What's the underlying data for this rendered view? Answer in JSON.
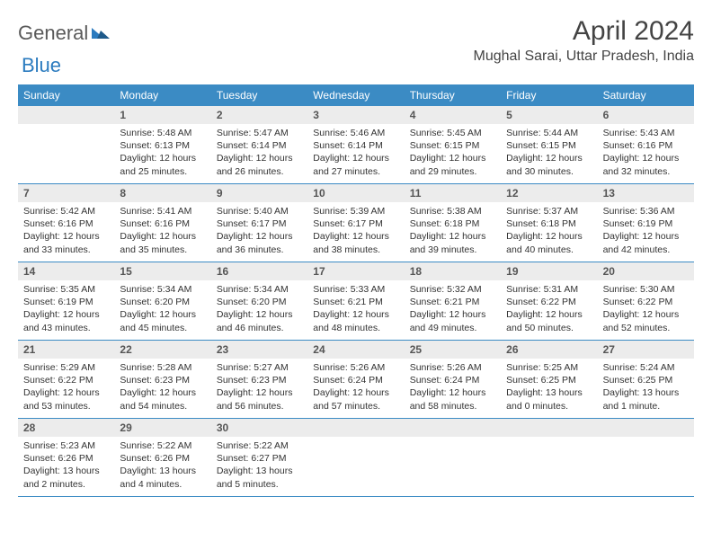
{
  "logo": {
    "part1": "General",
    "part2": "Blue"
  },
  "title": "April 2024",
  "location": "Mughal Sarai, Uttar Pradesh, India",
  "colors": {
    "header_bg": "#3b8bc4",
    "header_text": "#ffffff",
    "date_bg": "#ececec",
    "border": "#3b8bc4",
    "logo_gray": "#5a5a5a",
    "logo_blue": "#2b7bbf"
  },
  "day_headers": [
    "Sunday",
    "Monday",
    "Tuesday",
    "Wednesday",
    "Thursday",
    "Friday",
    "Saturday"
  ],
  "weeks": [
    [
      {
        "date": "",
        "sunrise": "",
        "sunset": "",
        "daylight": ""
      },
      {
        "date": "1",
        "sunrise": "Sunrise: 5:48 AM",
        "sunset": "Sunset: 6:13 PM",
        "daylight": "Daylight: 12 hours and 25 minutes."
      },
      {
        "date": "2",
        "sunrise": "Sunrise: 5:47 AM",
        "sunset": "Sunset: 6:14 PM",
        "daylight": "Daylight: 12 hours and 26 minutes."
      },
      {
        "date": "3",
        "sunrise": "Sunrise: 5:46 AM",
        "sunset": "Sunset: 6:14 PM",
        "daylight": "Daylight: 12 hours and 27 minutes."
      },
      {
        "date": "4",
        "sunrise": "Sunrise: 5:45 AM",
        "sunset": "Sunset: 6:15 PM",
        "daylight": "Daylight: 12 hours and 29 minutes."
      },
      {
        "date": "5",
        "sunrise": "Sunrise: 5:44 AM",
        "sunset": "Sunset: 6:15 PM",
        "daylight": "Daylight: 12 hours and 30 minutes."
      },
      {
        "date": "6",
        "sunrise": "Sunrise: 5:43 AM",
        "sunset": "Sunset: 6:16 PM",
        "daylight": "Daylight: 12 hours and 32 minutes."
      }
    ],
    [
      {
        "date": "7",
        "sunrise": "Sunrise: 5:42 AM",
        "sunset": "Sunset: 6:16 PM",
        "daylight": "Daylight: 12 hours and 33 minutes."
      },
      {
        "date": "8",
        "sunrise": "Sunrise: 5:41 AM",
        "sunset": "Sunset: 6:16 PM",
        "daylight": "Daylight: 12 hours and 35 minutes."
      },
      {
        "date": "9",
        "sunrise": "Sunrise: 5:40 AM",
        "sunset": "Sunset: 6:17 PM",
        "daylight": "Daylight: 12 hours and 36 minutes."
      },
      {
        "date": "10",
        "sunrise": "Sunrise: 5:39 AM",
        "sunset": "Sunset: 6:17 PM",
        "daylight": "Daylight: 12 hours and 38 minutes."
      },
      {
        "date": "11",
        "sunrise": "Sunrise: 5:38 AM",
        "sunset": "Sunset: 6:18 PM",
        "daylight": "Daylight: 12 hours and 39 minutes."
      },
      {
        "date": "12",
        "sunrise": "Sunrise: 5:37 AM",
        "sunset": "Sunset: 6:18 PM",
        "daylight": "Daylight: 12 hours and 40 minutes."
      },
      {
        "date": "13",
        "sunrise": "Sunrise: 5:36 AM",
        "sunset": "Sunset: 6:19 PM",
        "daylight": "Daylight: 12 hours and 42 minutes."
      }
    ],
    [
      {
        "date": "14",
        "sunrise": "Sunrise: 5:35 AM",
        "sunset": "Sunset: 6:19 PM",
        "daylight": "Daylight: 12 hours and 43 minutes."
      },
      {
        "date": "15",
        "sunrise": "Sunrise: 5:34 AM",
        "sunset": "Sunset: 6:20 PM",
        "daylight": "Daylight: 12 hours and 45 minutes."
      },
      {
        "date": "16",
        "sunrise": "Sunrise: 5:34 AM",
        "sunset": "Sunset: 6:20 PM",
        "daylight": "Daylight: 12 hours and 46 minutes."
      },
      {
        "date": "17",
        "sunrise": "Sunrise: 5:33 AM",
        "sunset": "Sunset: 6:21 PM",
        "daylight": "Daylight: 12 hours and 48 minutes."
      },
      {
        "date": "18",
        "sunrise": "Sunrise: 5:32 AM",
        "sunset": "Sunset: 6:21 PM",
        "daylight": "Daylight: 12 hours and 49 minutes."
      },
      {
        "date": "19",
        "sunrise": "Sunrise: 5:31 AM",
        "sunset": "Sunset: 6:22 PM",
        "daylight": "Daylight: 12 hours and 50 minutes."
      },
      {
        "date": "20",
        "sunrise": "Sunrise: 5:30 AM",
        "sunset": "Sunset: 6:22 PM",
        "daylight": "Daylight: 12 hours and 52 minutes."
      }
    ],
    [
      {
        "date": "21",
        "sunrise": "Sunrise: 5:29 AM",
        "sunset": "Sunset: 6:22 PM",
        "daylight": "Daylight: 12 hours and 53 minutes."
      },
      {
        "date": "22",
        "sunrise": "Sunrise: 5:28 AM",
        "sunset": "Sunset: 6:23 PM",
        "daylight": "Daylight: 12 hours and 54 minutes."
      },
      {
        "date": "23",
        "sunrise": "Sunrise: 5:27 AM",
        "sunset": "Sunset: 6:23 PM",
        "daylight": "Daylight: 12 hours and 56 minutes."
      },
      {
        "date": "24",
        "sunrise": "Sunrise: 5:26 AM",
        "sunset": "Sunset: 6:24 PM",
        "daylight": "Daylight: 12 hours and 57 minutes."
      },
      {
        "date": "25",
        "sunrise": "Sunrise: 5:26 AM",
        "sunset": "Sunset: 6:24 PM",
        "daylight": "Daylight: 12 hours and 58 minutes."
      },
      {
        "date": "26",
        "sunrise": "Sunrise: 5:25 AM",
        "sunset": "Sunset: 6:25 PM",
        "daylight": "Daylight: 13 hours and 0 minutes."
      },
      {
        "date": "27",
        "sunrise": "Sunrise: 5:24 AM",
        "sunset": "Sunset: 6:25 PM",
        "daylight": "Daylight: 13 hours and 1 minute."
      }
    ],
    [
      {
        "date": "28",
        "sunrise": "Sunrise: 5:23 AM",
        "sunset": "Sunset: 6:26 PM",
        "daylight": "Daylight: 13 hours and 2 minutes."
      },
      {
        "date": "29",
        "sunrise": "Sunrise: 5:22 AM",
        "sunset": "Sunset: 6:26 PM",
        "daylight": "Daylight: 13 hours and 4 minutes."
      },
      {
        "date": "30",
        "sunrise": "Sunrise: 5:22 AM",
        "sunset": "Sunset: 6:27 PM",
        "daylight": "Daylight: 13 hours and 5 minutes."
      },
      {
        "date": "",
        "sunrise": "",
        "sunset": "",
        "daylight": ""
      },
      {
        "date": "",
        "sunrise": "",
        "sunset": "",
        "daylight": ""
      },
      {
        "date": "",
        "sunrise": "",
        "sunset": "",
        "daylight": ""
      },
      {
        "date": "",
        "sunrise": "",
        "sunset": "",
        "daylight": ""
      }
    ]
  ]
}
